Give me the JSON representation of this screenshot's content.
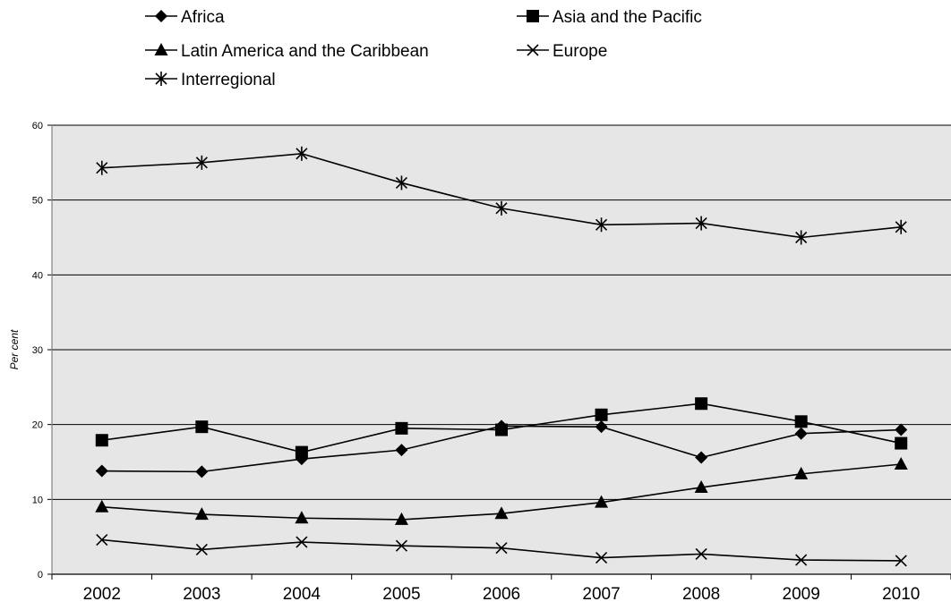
{
  "chart_data": {
    "type": "line",
    "title": "",
    "xlabel": "",
    "ylabel": "Per cent",
    "ylim": [
      0,
      60
    ],
    "yticks": [
      0,
      10,
      20,
      30,
      40,
      50,
      60
    ],
    "categories": [
      "2002",
      "2003",
      "2004",
      "2005",
      "2006",
      "2007",
      "2008",
      "2009",
      "2010"
    ],
    "grid": "horizontal",
    "legend_position": "top",
    "plot_background": "#e6e6e6",
    "series": [
      {
        "name": "Africa",
        "marker": "diamond",
        "values": [
          13.8,
          13.7,
          15.4,
          16.6,
          19.8,
          19.7,
          15.6,
          18.8,
          19.3
        ]
      },
      {
        "name": "Asia and the Pacific",
        "marker": "square",
        "values": [
          17.9,
          19.7,
          16.3,
          19.5,
          19.3,
          21.3,
          22.8,
          20.4,
          17.5
        ]
      },
      {
        "name": "Latin America and the Caribbean",
        "marker": "triangle",
        "values": [
          9.0,
          8.0,
          7.5,
          7.3,
          8.1,
          9.6,
          11.6,
          13.4,
          14.7
        ]
      },
      {
        "name": "Europe",
        "marker": "x",
        "values": [
          4.6,
          3.3,
          4.3,
          3.8,
          3.5,
          2.2,
          2.7,
          1.9,
          1.8
        ]
      },
      {
        "name": "Interregional",
        "marker": "asterisk",
        "values": [
          54.3,
          55.0,
          56.2,
          52.3,
          48.9,
          46.7,
          46.9,
          45.0,
          46.4
        ]
      }
    ]
  }
}
